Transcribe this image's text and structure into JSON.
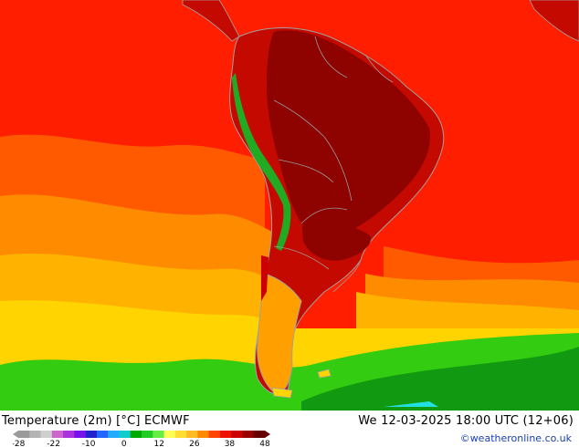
{
  "footer": {
    "title": "Temperature (2m) [°C] ECMWF",
    "datetime": "We 12-03-2025 18:00 UTC (12+06)",
    "credit": "©weatheronline.co.uk"
  },
  "legend": {
    "ticks": [
      "-28",
      "-22",
      "-10",
      "0",
      "12",
      "26",
      "38",
      "48"
    ],
    "colors": [
      "#9a9a9a",
      "#b4b4b4",
      "#cfcfcf",
      "#cc66cc",
      "#aa33dd",
      "#7711ee",
      "#2222cc",
      "#2266ff",
      "#22aaff",
      "#11cccc",
      "#00aa00",
      "#22cc22",
      "#66ee44",
      "#ffff55",
      "#ffdd33",
      "#ffbb22",
      "#ff8800",
      "#ff4400",
      "#ee1100",
      "#cc0000",
      "#990000",
      "#660000"
    ]
  },
  "map": {
    "colors": {
      "ocean_hot": "#ff1e00",
      "ocean_warm": "#ff5a00",
      "ocean_orange": "#ff8c00",
      "ocean_gold": "#ffb300",
      "ocean_yellow": "#ffd400",
      "cold_green": "#33cc11",
      "cold_dark": "#119911",
      "land_hot": "#c40a00",
      "land_core": "#8e0200",
      "andes": "#22aa22",
      "patagonia": "#ffa000"
    }
  }
}
